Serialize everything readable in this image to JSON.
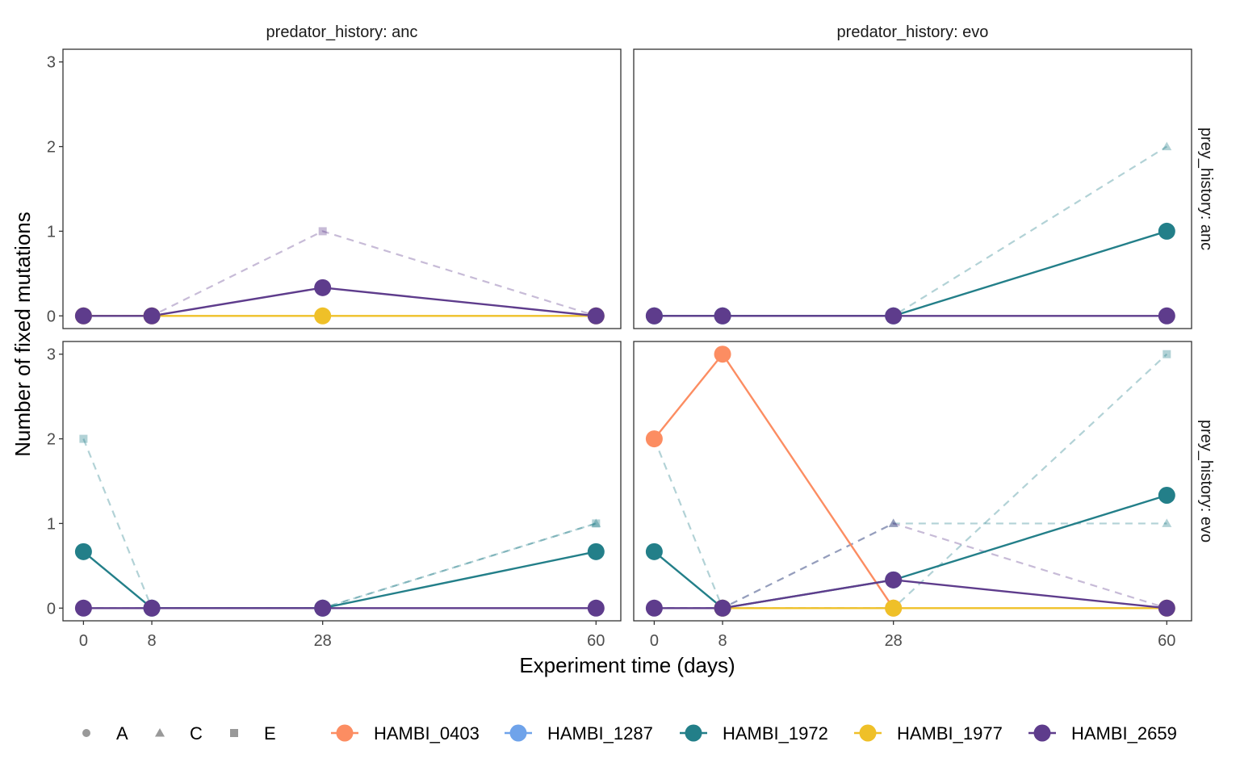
{
  "chart_data": {
    "type": "line",
    "xlabel": "Experiment time (days)",
    "ylabel": "Number of fixed mutations",
    "x_ticks": [
      0,
      8,
      28,
      60
    ],
    "y_ticks": [
      0,
      1,
      2,
      3
    ],
    "xlim": [
      -2.4,
      62.9
    ],
    "ylim": [
      -0.15,
      3.15
    ],
    "grid": false,
    "legend_position": "bottom",
    "facet_col_labels": [
      "predator_history: anc",
      "predator_history: evo"
    ],
    "facet_row_labels": [
      "prey_history: anc",
      "prey_history: evo"
    ],
    "shape_legend": [
      {
        "label": "A",
        "shape": "circle"
      },
      {
        "label": "C",
        "shape": "triangle"
      },
      {
        "label": "E",
        "shape": "square"
      }
    ],
    "color_legend": [
      {
        "label": "HAMBI_0403",
        "color": "#fc8d62"
      },
      {
        "label": "HAMBI_1287",
        "color": "#6fa3ea"
      },
      {
        "label": "HAMBI_1972",
        "color": "#237f89"
      },
      {
        "label": "HAMBI_1977",
        "color": "#efc028"
      },
      {
        "label": "HAMBI_2659",
        "color": "#5e3c8c"
      }
    ],
    "panels": [
      {
        "row": 0,
        "col": 0,
        "mean_lines": [
          {
            "species": "HAMBI_1977",
            "x": [
              0,
              8,
              28,
              60
            ],
            "y": [
              0,
              0,
              0,
              0
            ]
          },
          {
            "species": "HAMBI_2659",
            "x": [
              0,
              8,
              28,
              60
            ],
            "y": [
              0,
              0,
              0.333,
              0
            ]
          }
        ],
        "replicate_lines": [
          {
            "species": "HAMBI_2659",
            "replicate": "E",
            "x": [
              0,
              8,
              28,
              60
            ],
            "y": [
              0,
              0,
              1,
              0
            ]
          }
        ]
      },
      {
        "row": 0,
        "col": 1,
        "mean_lines": [
          {
            "species": "HAMBI_1972",
            "x": [
              0,
              8,
              28,
              60
            ],
            "y": [
              0,
              0,
              0,
              1
            ]
          },
          {
            "species": "HAMBI_2659",
            "x": [
              0,
              8,
              28,
              60
            ],
            "y": [
              0,
              0,
              0,
              0
            ]
          }
        ],
        "replicate_lines": [
          {
            "species": "HAMBI_1972",
            "replicate": "C",
            "x": [
              0,
              8,
              28,
              60
            ],
            "y": [
              0,
              0,
              0,
              2
            ]
          }
        ]
      },
      {
        "row": 1,
        "col": 0,
        "mean_lines": [
          {
            "species": "HAMBI_1972",
            "x": [
              0,
              8,
              28,
              60
            ],
            "y": [
              0.667,
              0,
              0,
              0.667
            ]
          },
          {
            "species": "HAMBI_2659",
            "x": [
              0,
              8,
              28,
              60
            ],
            "y": [
              0,
              0,
              0,
              0
            ]
          }
        ],
        "replicate_lines": [
          {
            "species": "HAMBI_1972",
            "replicate": "E",
            "x": [
              0,
              8,
              28,
              60
            ],
            "y": [
              2,
              0,
              0,
              1
            ]
          },
          {
            "species": "HAMBI_1972",
            "replicate": "C",
            "x": [
              0,
              8,
              28,
              60
            ],
            "y": [
              0,
              0,
              0,
              1
            ]
          }
        ]
      },
      {
        "row": 1,
        "col": 1,
        "mean_lines": [
          {
            "species": "HAMBI_0403",
            "x": [
              0,
              8,
              28
            ],
            "y": [
              2,
              3,
              0
            ]
          },
          {
            "species": "HAMBI_1972",
            "x": [
              0,
              8,
              28,
              60
            ],
            "y": [
              0.667,
              0,
              0.333,
              1.333
            ]
          },
          {
            "species": "HAMBI_1977",
            "x": [
              8,
              28,
              60
            ],
            "y": [
              0,
              0,
              0
            ]
          },
          {
            "species": "HAMBI_2659",
            "x": [
              0,
              8,
              28,
              60
            ],
            "y": [
              0,
              0,
              0.333,
              0
            ]
          }
        ],
        "replicate_lines": [
          {
            "species": "HAMBI_1972",
            "replicate": "E",
            "x": [
              0,
              8,
              28,
              60
            ],
            "y": [
              2,
              0,
              0,
              3
            ]
          },
          {
            "species": "HAMBI_1972",
            "replicate": "C",
            "x": [
              0,
              8,
              28,
              60
            ],
            "y": [
              0,
              0,
              1,
              1
            ]
          },
          {
            "species": "HAMBI_2659",
            "replicate": "C",
            "x": [
              0,
              8,
              28,
              60
            ],
            "y": [
              0,
              0,
              1,
              0
            ]
          }
        ]
      }
    ]
  }
}
